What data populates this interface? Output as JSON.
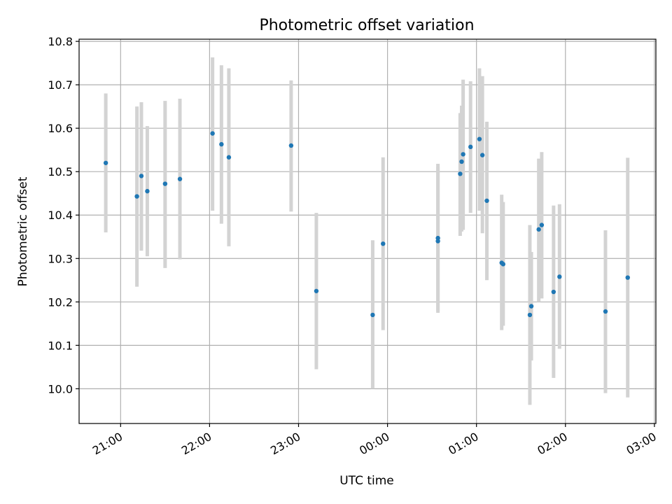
{
  "chart_data": {
    "type": "scatter",
    "title": "Photometric offset variation",
    "xlabel": "UTC time",
    "ylabel": "Photometric offset",
    "x_axis_type": "time",
    "xlim": [
      "20:32",
      "03:01"
    ],
    "ylim": [
      9.92,
      10.805
    ],
    "x_ticks": [
      "21:00",
      "22:00",
      "23:00",
      "00:00",
      "01:00",
      "02:00",
      "03:00"
    ],
    "y_ticks": [
      "10.0",
      "10.1",
      "10.2",
      "10.3",
      "10.4",
      "10.5",
      "10.6",
      "10.7",
      "10.8"
    ],
    "grid": true,
    "legend": "none",
    "point_color": "#1f77b4",
    "errorbar_color": "#d3d3d3",
    "points": [
      {
        "x": "20:50",
        "y": 10.52,
        "ylow": 10.36,
        "yhigh": 10.68
      },
      {
        "x": "21:11",
        "y": 10.443,
        "ylow": 10.235,
        "yhigh": 10.65
      },
      {
        "x": "21:14",
        "y": 10.49,
        "ylow": 10.318,
        "yhigh": 10.66
      },
      {
        "x": "21:18",
        "y": 10.455,
        "ylow": 10.305,
        "yhigh": 10.605
      },
      {
        "x": "21:30",
        "y": 10.472,
        "ylow": 10.278,
        "yhigh": 10.663
      },
      {
        "x": "21:40",
        "y": 10.483,
        "ylow": 10.298,
        "yhigh": 10.668
      },
      {
        "x": "22:02",
        "y": 10.588,
        "ylow": 10.41,
        "yhigh": 10.763
      },
      {
        "x": "22:08",
        "y": 10.563,
        "ylow": 10.38,
        "yhigh": 10.745
      },
      {
        "x": "22:13",
        "y": 10.533,
        "ylow": 10.328,
        "yhigh": 10.738
      },
      {
        "x": "22:55",
        "y": 10.56,
        "ylow": 10.408,
        "yhigh": 10.71
      },
      {
        "x": "23:12",
        "y": 10.225,
        "ylow": 10.045,
        "yhigh": 10.405
      },
      {
        "x": "23:50",
        "y": 10.17,
        "ylow": 10.0,
        "yhigh": 10.342
      },
      {
        "x": "23:57",
        "y": 10.334,
        "ylow": 10.135,
        "yhigh": 10.533
      },
      {
        "x": "00:34",
        "y": 10.347,
        "ylow": 10.175,
        "yhigh": 10.518
      },
      {
        "x": "00:34",
        "y": 10.34,
        "ylow": 10.18,
        "yhigh": 10.51
      },
      {
        "x": "00:49",
        "y": 10.495,
        "ylow": 10.352,
        "yhigh": 10.635
      },
      {
        "x": "00:50",
        "y": 10.523,
        "ylow": 10.362,
        "yhigh": 10.652
      },
      {
        "x": "00:51",
        "y": 10.54,
        "ylow": 10.366,
        "yhigh": 10.712
      },
      {
        "x": "00:56",
        "y": 10.557,
        "ylow": 10.405,
        "yhigh": 10.708
      },
      {
        "x": "01:02",
        "y": 10.575,
        "ylow": 10.41,
        "yhigh": 10.738
      },
      {
        "x": "01:04",
        "y": 10.538,
        "ylow": 10.358,
        "yhigh": 10.72
      },
      {
        "x": "01:07",
        "y": 10.433,
        "ylow": 10.25,
        "yhigh": 10.615
      },
      {
        "x": "01:17",
        "y": 10.29,
        "ylow": 10.135,
        "yhigh": 10.447
      },
      {
        "x": "01:18",
        "y": 10.287,
        "ylow": 10.145,
        "yhigh": 10.43
      },
      {
        "x": "01:36",
        "y": 10.17,
        "ylow": 9.963,
        "yhigh": 10.377
      },
      {
        "x": "01:37",
        "y": 10.19,
        "ylow": 10.065,
        "yhigh": 10.315
      },
      {
        "x": "01:42",
        "y": 10.367,
        "ylow": 10.2,
        "yhigh": 10.53
      },
      {
        "x": "01:44",
        "y": 10.377,
        "ylow": 10.208,
        "yhigh": 10.545
      },
      {
        "x": "01:52",
        "y": 10.223,
        "ylow": 10.025,
        "yhigh": 10.422
      },
      {
        "x": "01:56",
        "y": 10.258,
        "ylow": 10.092,
        "yhigh": 10.425
      },
      {
        "x": "02:27",
        "y": 10.178,
        "ylow": 9.99,
        "yhigh": 10.365
      },
      {
        "x": "02:42",
        "y": 10.256,
        "ylow": 9.98,
        "yhigh": 10.532
      }
    ]
  }
}
